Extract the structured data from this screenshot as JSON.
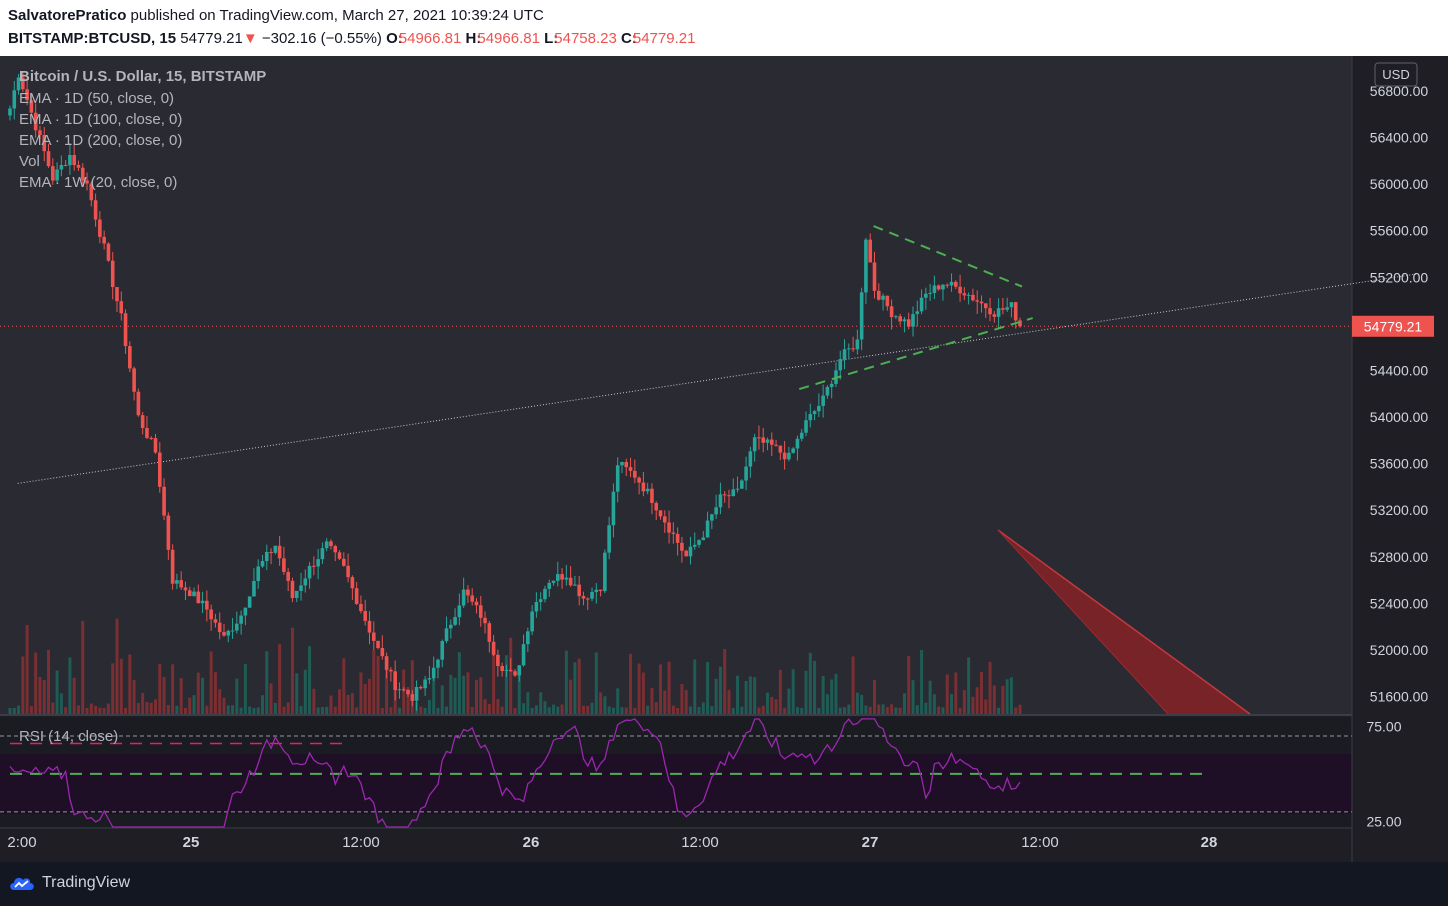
{
  "header": {
    "author": "SalvatorePratico",
    "published": " published on TradingView.com, March 27, 2021 10:39:24 UTC",
    "symbol": "BITSTAMP:BTCUSD, 15",
    "price": "54779.21",
    "change_arrow": "▼",
    "change": "−302.16 (−0.55%)",
    "o_label": "O:",
    "o": "54966.81",
    "h_label": "H:",
    "h": "54966.81",
    "l_label": "L:",
    "l": "54758.23",
    "c_label": "C:",
    "c": "54779.21"
  },
  "legend": {
    "title": "Bitcoin / U.S. Dollar, 15, BITSTAMP",
    "ind1": "EMA · 1D (50, close, 0)",
    "ind2": "EMA · 1D (100, close, 0)",
    "ind3": "EMA · 1D (200, close, 0)",
    "ind4": "Vol",
    "ind5": "EMA · 1W (20, close, 0)"
  },
  "rsi": {
    "label": "RSI (14, close)",
    "ticks": [
      "75.00",
      "25.00"
    ]
  },
  "footer": {
    "brand": "TradingView"
  },
  "chart_data": {
    "type": "candlestick",
    "symbol": "BITSTAMP:BTCUSD",
    "interval": "15",
    "currency": "USD",
    "last_price": "54779.21",
    "y_ticks": [
      "56800.00",
      "56400.00",
      "56000.00",
      "55600.00",
      "55200.00",
      "54400.00",
      "54000.00",
      "53600.00",
      "53200.00",
      "52800.00",
      "52400.00",
      "52000.00",
      "51600.00"
    ],
    "ylim": [
      51450,
      57100
    ],
    "x_ticks": [
      "2:00",
      "25",
      "12:00",
      "26",
      "12:00",
      "27",
      "12:00",
      "28"
    ],
    "x_tick_bold": [
      false,
      true,
      false,
      true,
      false,
      true,
      false,
      true
    ],
    "path_keypoints": [
      [
        0,
        56650
      ],
      [
        1,
        56950
      ],
      [
        3,
        56500
      ],
      [
        5,
        56050
      ],
      [
        7,
        56250
      ],
      [
        9,
        56000
      ],
      [
        11,
        55450
      ],
      [
        13,
        54850
      ],
      [
        15,
        54000
      ],
      [
        17,
        53700
      ],
      [
        19,
        52600
      ],
      [
        21,
        52500
      ],
      [
        23,
        52350
      ],
      [
        25,
        52100
      ],
      [
        27,
        52300
      ],
      [
        29,
        52700
      ],
      [
        31,
        52900
      ],
      [
        33,
        52450
      ],
      [
        35,
        52700
      ],
      [
        37,
        52900
      ],
      [
        39,
        52700
      ],
      [
        41,
        52350
      ],
      [
        43,
        52000
      ],
      [
        45,
        51700
      ],
      [
        47,
        51600
      ],
      [
        49,
        51750
      ],
      [
        51,
        52150
      ],
      [
        53,
        52500
      ],
      [
        55,
        52300
      ],
      [
        57,
        51900
      ],
      [
        59,
        51750
      ],
      [
        61,
        52350
      ],
      [
        63,
        52600
      ],
      [
        65,
        52650
      ],
      [
        67,
        52450
      ],
      [
        69,
        52550
      ],
      [
        71,
        53600
      ],
      [
        73,
        53500
      ],
      [
        75,
        53300
      ],
      [
        77,
        53050
      ],
      [
        79,
        52800
      ],
      [
        81,
        53000
      ],
      [
        83,
        53300
      ],
      [
        85,
        53350
      ],
      [
        87,
        53800
      ],
      [
        89,
        53750
      ],
      [
        91,
        53650
      ],
      [
        93,
        53950
      ],
      [
        95,
        54150
      ],
      [
        97,
        54500
      ],
      [
        99,
        54650
      ],
      [
        100,
        55550
      ],
      [
        101,
        55100
      ],
      [
        103,
        54900
      ],
      [
        105,
        54800
      ],
      [
        107,
        55050
      ],
      [
        109,
        55150
      ],
      [
        111,
        55100
      ],
      [
        113,
        55000
      ],
      [
        115,
        54900
      ],
      [
        117,
        54950
      ],
      [
        118,
        54780
      ]
    ],
    "rsi_ylim": [
      22,
      80
    ],
    "rsi_levels": [
      70,
      50,
      30
    ],
    "trendlines": [
      {
        "name": "long-dotted-support",
        "from": [
          "24 11:45",
          53430
        ],
        "to": [
          "28 14:45",
          55230
        ]
      },
      {
        "name": "triangle-upper",
        "from": [
          "27 00:15",
          55640
        ],
        "to": [
          "27 10:45",
          55120
        ]
      },
      {
        "name": "triangle-lower",
        "from": [
          "26 19:00",
          54240
        ],
        "to": [
          "27 11:30",
          54850
        ]
      }
    ],
    "colors": {
      "up": "#26a69a",
      "down": "#ef5350",
      "triangle": "#4caf50",
      "rsi": "#9c27b0",
      "price_label": "#ef5350"
    }
  }
}
